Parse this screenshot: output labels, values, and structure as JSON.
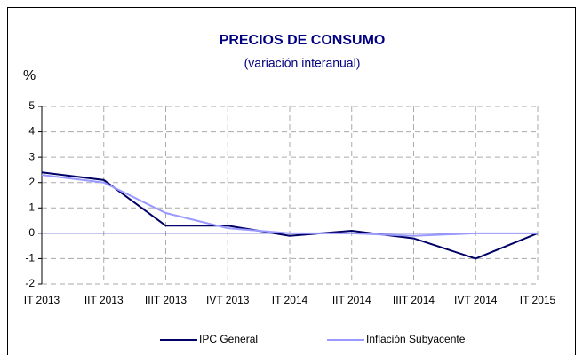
{
  "chart_data": {
    "type": "line",
    "title": "PRECIOS DE CONSUMO",
    "subtitle": "(variación interanual)",
    "y_label": "%",
    "categories": [
      "IT 2013",
      "IIT 2013",
      "IIIT 2013",
      "IVT 2013",
      "IT 2014",
      "IIT 2014",
      "IIIT 2014",
      "IVT 2014",
      "IT 2015"
    ],
    "series": [
      {
        "name": "IPC General",
        "color": "#000066",
        "values": [
          2.4,
          2.1,
          0.3,
          0.3,
          -0.1,
          0.1,
          -0.2,
          -1.0,
          0.0
        ]
      },
      {
        "name": "Inflación Subyacente",
        "color": "#9999ff",
        "values": [
          2.3,
          2.0,
          0.8,
          0.2,
          0.0,
          0.0,
          -0.1,
          0.0,
          0.0
        ]
      }
    ],
    "ylim": [
      -2,
      5
    ],
    "yticks": [
      -2,
      -1,
      0,
      1,
      2,
      3,
      4,
      5
    ],
    "grid": true,
    "legend": "bottom"
  }
}
